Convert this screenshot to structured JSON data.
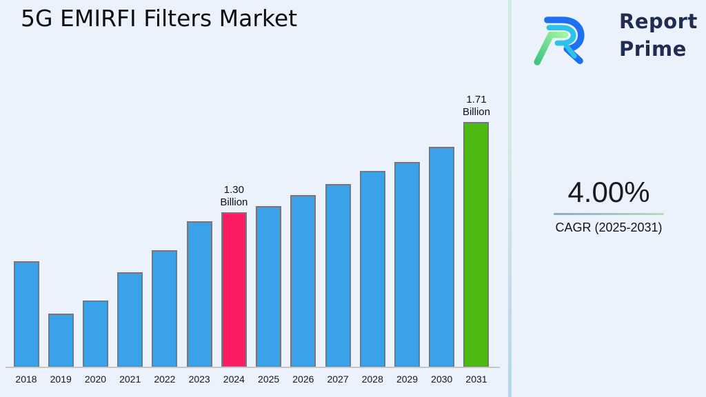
{
  "title": "5G EMIRFI Filters Market",
  "logo": {
    "line1": "Report",
    "line2": "Prime",
    "icon": "report-prime-logo-icon",
    "text_color": "#212c52"
  },
  "cagr": {
    "value": "4.00%",
    "label": "CAGR (2025-2031)"
  },
  "chart_data": {
    "type": "bar",
    "title": "5G EMIRFI Filters Market",
    "categories": [
      "2018",
      "2019",
      "2020",
      "2021",
      "2022",
      "2023",
      "2024",
      "2025",
      "2026",
      "2027",
      "2028",
      "2029",
      "2030",
      "2031"
    ],
    "values": [
      1.08,
      0.84,
      0.9,
      1.03,
      1.13,
      1.26,
      1.3,
      1.33,
      1.38,
      1.43,
      1.49,
      1.53,
      1.6,
      1.71
    ],
    "unit": "Billion",
    "xlabel": "",
    "ylabel": "",
    "ylim": [
      0.597,
      1.87
    ],
    "grid": false,
    "legend": false,
    "bar_default_color": "#3aa2e8",
    "bar_edge_color": "#75767e",
    "highlights": [
      {
        "category": "2024",
        "value_label": "1.30",
        "unit_label": "Billion",
        "color": "#fb1b63"
      },
      {
        "category": "2031",
        "value_label": "1.71",
        "unit_label": "Billion",
        "color": "#4cba11"
      }
    ]
  }
}
